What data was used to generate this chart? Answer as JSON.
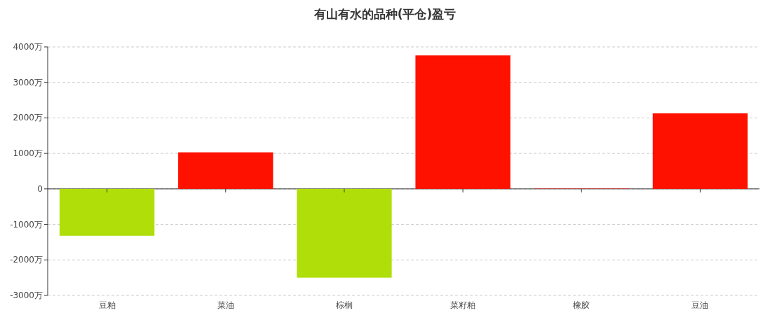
{
  "chart_data": {
    "type": "bar",
    "title": "有山有水的品种(平仓)盈亏",
    "categories": [
      "豆粕",
      "菜油",
      "棕榈",
      "菜籽粕",
      "橡胶",
      "豆油"
    ],
    "values": [
      -1320,
      1030,
      -2500,
      3760,
      10,
      2130
    ],
    "colors": [
      "#b0de09",
      "#ff1100",
      "#b0de09",
      "#ff1100",
      "#ff1100",
      "#ff1100"
    ],
    "ylim": [
      -3000,
      4000
    ],
    "yticks": [
      {
        "value": -3000,
        "label": "-3000万"
      },
      {
        "value": -2000,
        "label": "-2000万"
      },
      {
        "value": -1000,
        "label": "-1000万"
      },
      0,
      {
        "value": 1000,
        "label": "1000万"
      },
      {
        "value": 2000,
        "label": "2000万"
      },
      {
        "value": 3000,
        "label": "3000万"
      },
      {
        "value": 4000,
        "label": "4000万"
      }
    ],
    "grid": "y"
  }
}
